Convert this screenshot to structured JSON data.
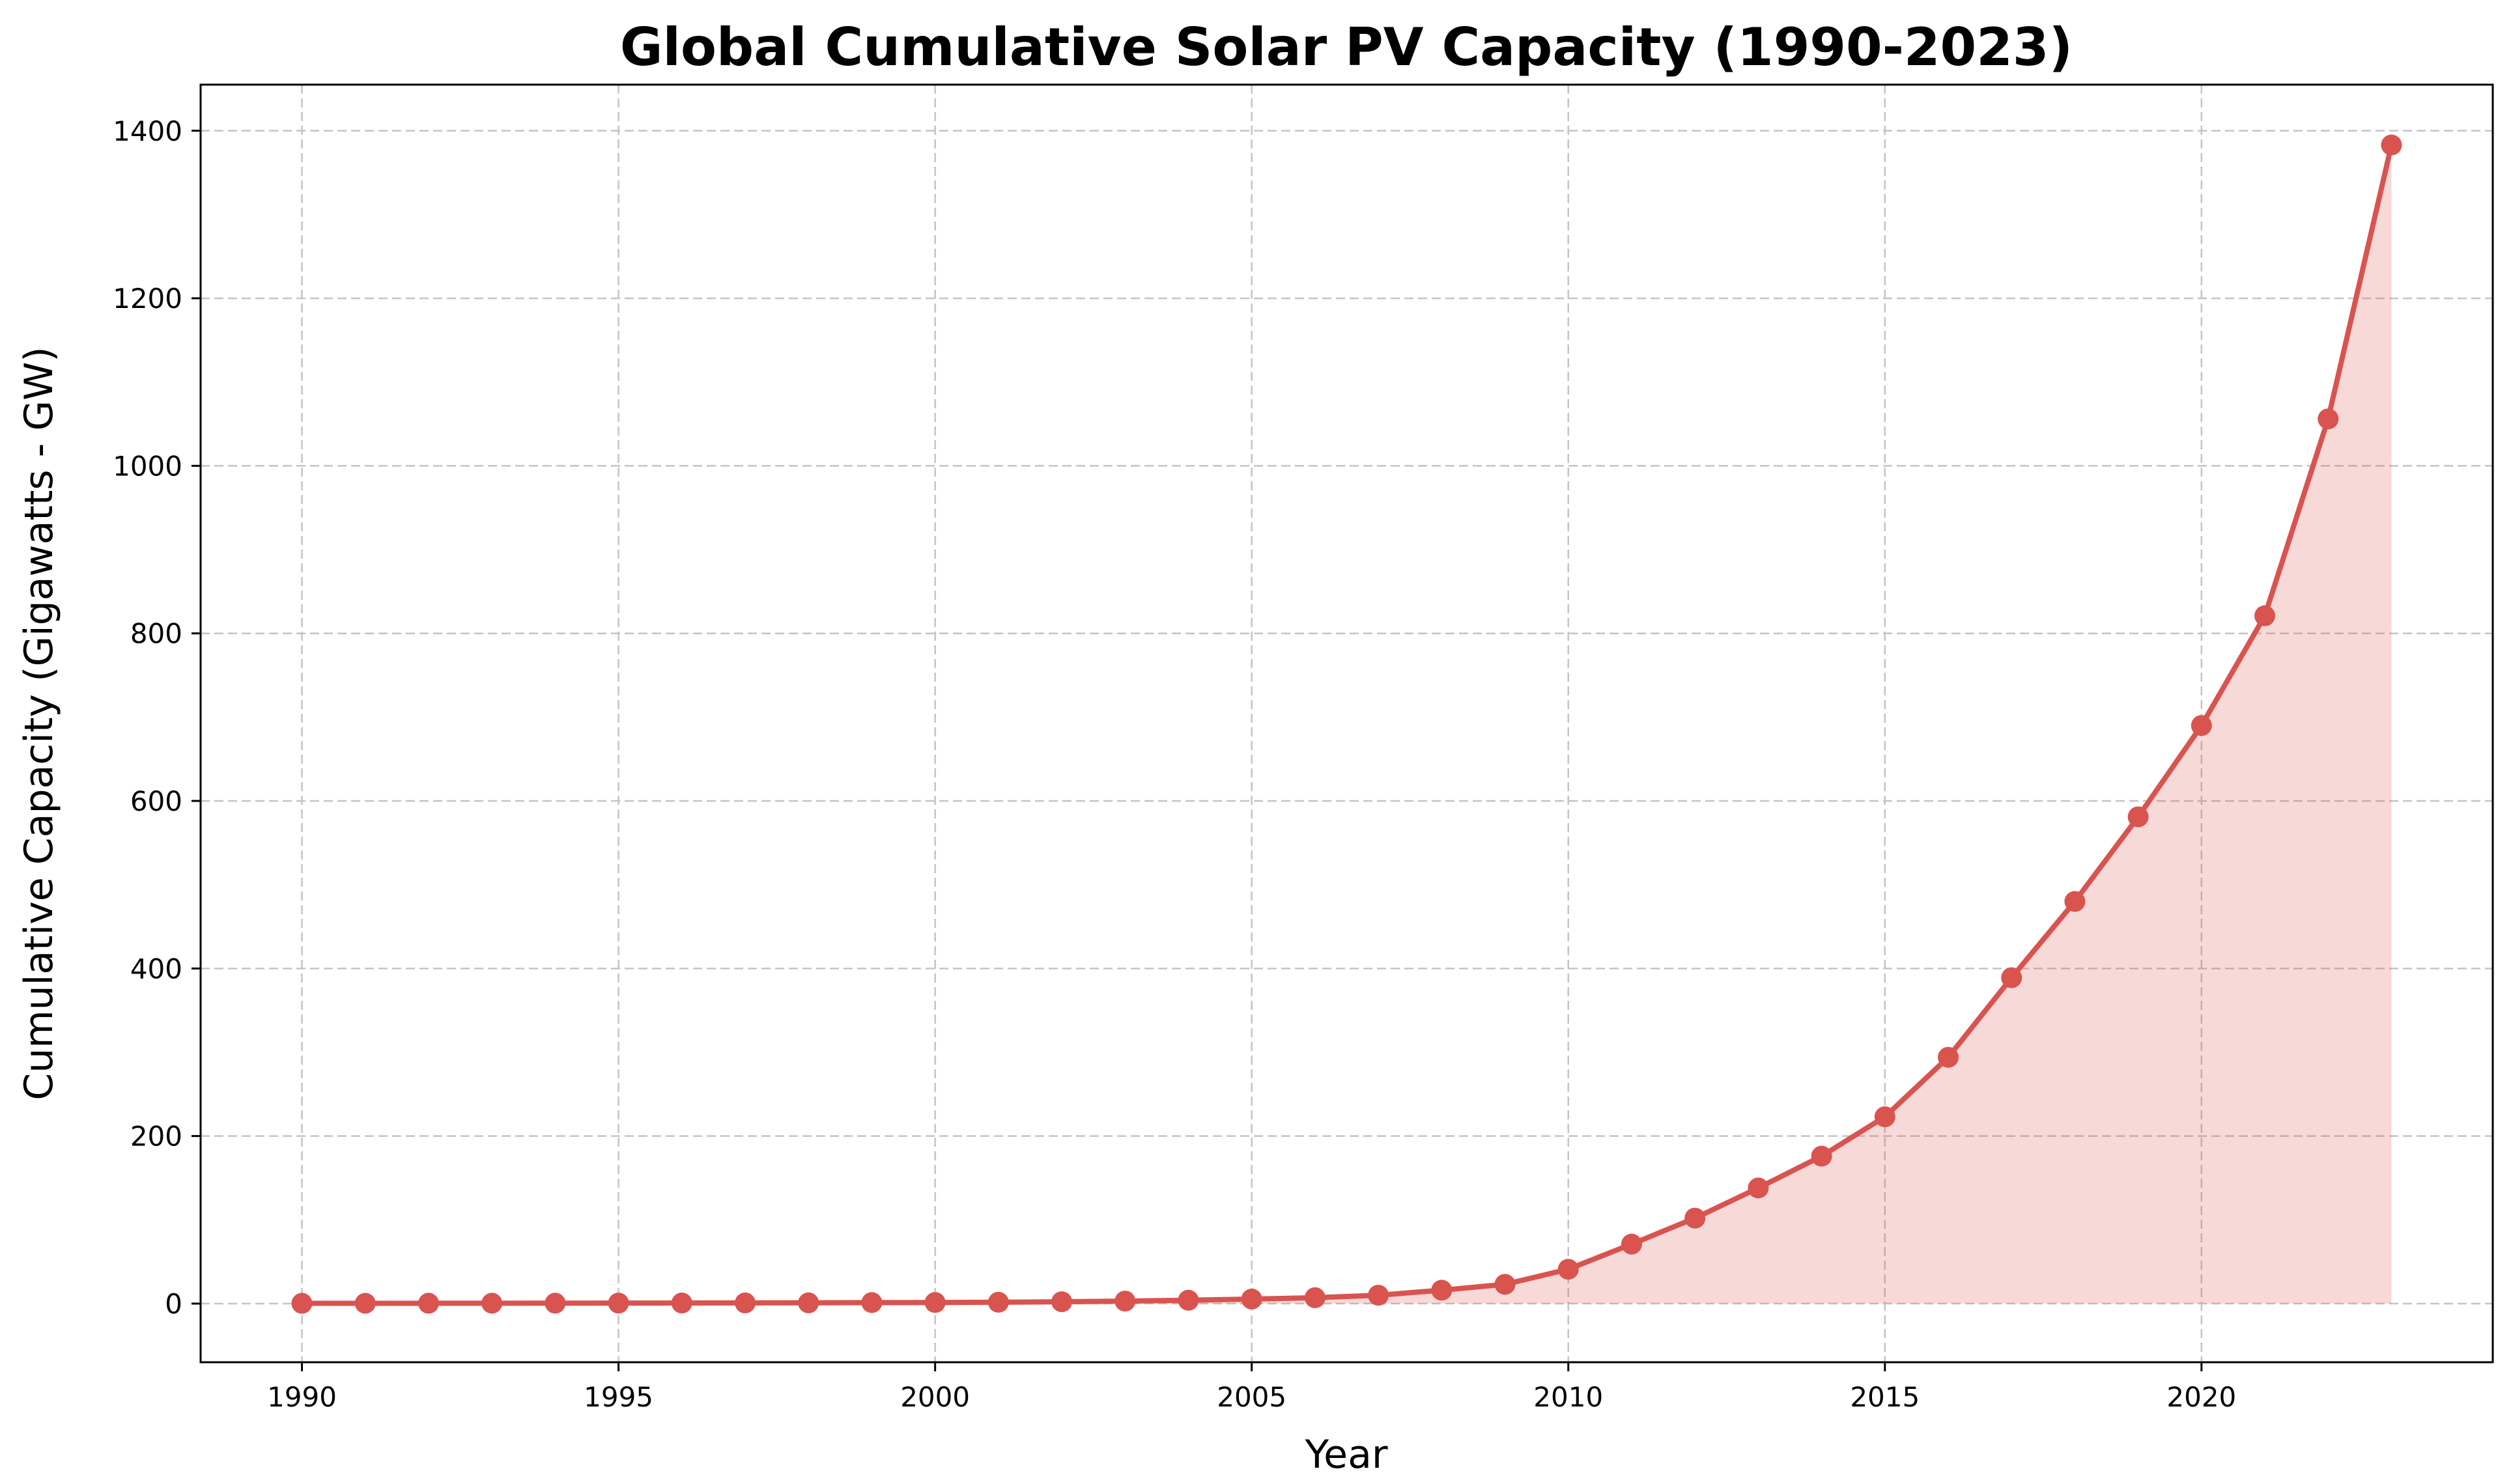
{
  "chart_data": {
    "type": "line",
    "title": "Global Cumulative Solar PV Capacity (1990-2023)",
    "xlabel": "Year",
    "ylabel": "Cumulative Capacity (Gigawatts - GW)",
    "xlim": [
      1988.4,
      2024.6
    ],
    "ylim": [
      -70,
      1455
    ],
    "x_ticks": [
      1990,
      1995,
      2000,
      2005,
      2010,
      2015,
      2020
    ],
    "x_tick_labels": [
      "1990",
      "1995",
      "2000",
      "2005",
      "2010",
      "2015",
      "2020"
    ],
    "y_ticks": [
      0,
      200,
      400,
      600,
      800,
      1000,
      1200,
      1400
    ],
    "y_tick_labels": [
      "0",
      "200",
      "400",
      "600",
      "800",
      "1000",
      "1200",
      "1400"
    ],
    "grid": true,
    "grid_style": "dashed",
    "fill_under_line": true,
    "colors": {
      "line": "#d9534f",
      "marker": "#d9534f",
      "fill": "#d9534f",
      "grid": "#c4c4c4",
      "axes": "#000000"
    },
    "series": [
      {
        "name": "Cumulative Capacity",
        "x": [
          1990,
          1991,
          1992,
          1993,
          1994,
          1995,
          1996,
          1997,
          1998,
          1999,
          2000,
          2001,
          2002,
          2003,
          2004,
          2005,
          2006,
          2007,
          2008,
          2009,
          2010,
          2011,
          2012,
          2013,
          2014,
          2015,
          2016,
          2017,
          2018,
          2019,
          2020,
          2021,
          2022,
          2023
        ],
        "values": [
          0.3,
          0.35,
          0.4,
          0.45,
          0.5,
          0.6,
          0.7,
          0.8,
          0.9,
          1.2,
          1.3,
          1.6,
          2.2,
          3.0,
          4.0,
          5.4,
          7.0,
          10.0,
          16.0,
          23.0,
          41.0,
          71.0,
          102.0,
          138.0,
          176.0,
          223.0,
          294.0,
          389.0,
          480.0,
          581.0,
          690.0,
          821.0,
          1056.0,
          1383.0
        ]
      }
    ]
  }
}
